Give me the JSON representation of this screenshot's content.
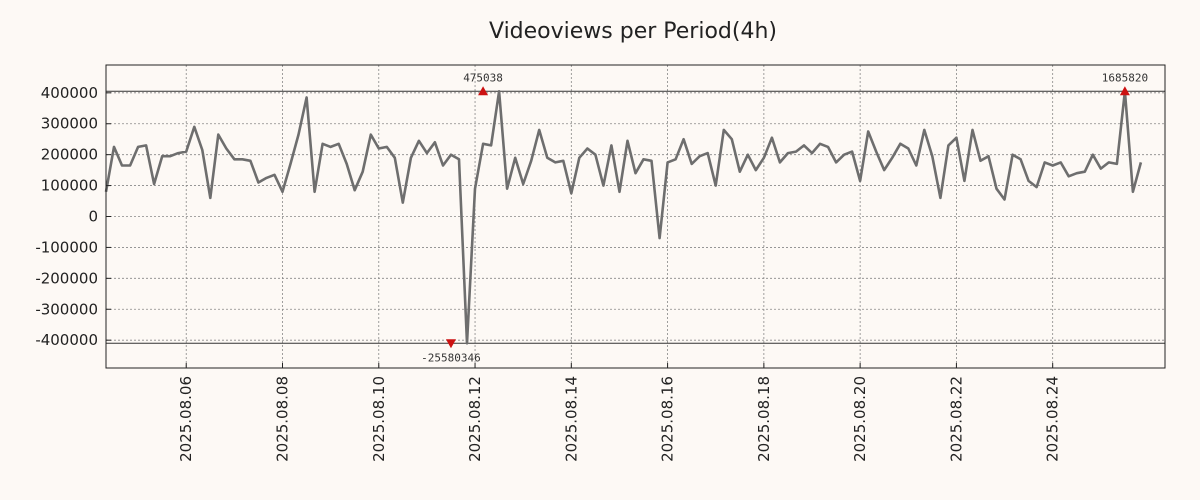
{
  "chart_data": {
    "type": "line",
    "title": "Videoviews per Period(4h)",
    "xlabel": "",
    "ylabel": "",
    "ylim": [
      -490000,
      490000
    ],
    "xlim": [
      "2025.08.04 08:00",
      "2025.08.26 08:00"
    ],
    "grid": true,
    "y_ticks": [
      "400000",
      "300000",
      "200000",
      "100000",
      "0",
      "-100000",
      "-200000",
      "-300000",
      "-400000"
    ],
    "x_ticks": [
      "2025.08.06",
      "2025.08.08",
      "2025.08.10",
      "2025.08.12",
      "2025.08.14",
      "2025.08.16",
      "2025.08.18",
      "2025.08.20",
      "2025.08.22",
      "2025.08.24"
    ],
    "colors": {
      "line": "#6e6e6e",
      "marker": "#cc1111",
      "background": "#fdf9f5"
    },
    "reference_lines": [
      405000,
      -410000
    ],
    "annotations": [
      {
        "label": "475038",
        "x": "2025.08.12 04:00",
        "y": 405000,
        "marker": "triangle-up"
      },
      {
        "label": "-25580346",
        "x": "2025.08.11 12:00",
        "y": -410000,
        "marker": "triangle-down"
      },
      {
        "label": "1685820",
        "x": "2025.08.25 12:00",
        "y": 405000,
        "marker": "triangle-up"
      }
    ],
    "series": [
      {
        "start": "2025.08.04 08:00",
        "step_hours": 4,
        "values": [
          80000,
          225000,
          165000,
          165000,
          225000,
          230000,
          105000,
          195000,
          195000,
          205000,
          210000,
          290000,
          215000,
          60000,
          265000,
          220000,
          185000,
          185000,
          180000,
          110000,
          125000,
          135000,
          80000,
          170000,
          265000,
          385000,
          80000,
          235000,
          225000,
          235000,
          170000,
          85000,
          145000,
          265000,
          220000,
          225000,
          190000,
          45000,
          190000,
          245000,
          205000,
          240000,
          165000,
          200000,
          185000,
          -410000,
          90000,
          235000,
          230000,
          405000,
          90000,
          190000,
          105000,
          180000,
          280000,
          190000,
          175000,
          180000,
          75000,
          190000,
          220000,
          200000,
          100000,
          230000,
          80000,
          245000,
          140000,
          185000,
          180000,
          -70000,
          175000,
          185000,
          250000,
          170000,
          195000,
          205000,
          100000,
          280000,
          250000,
          145000,
          200000,
          150000,
          190000,
          255000,
          175000,
          205000,
          210000,
          230000,
          205000,
          235000,
          225000,
          175000,
          200000,
          210000,
          115000,
          275000,
          210000,
          150000,
          190000,
          235000,
          220000,
          165000,
          280000,
          195000,
          60000,
          230000,
          255000,
          115000,
          280000,
          180000,
          195000,
          90000,
          55000,
          200000,
          185000,
          115000,
          95000,
          175000,
          165000,
          175000,
          130000,
          140000,
          145000,
          200000,
          155000,
          175000,
          170000,
          405000,
          80000,
          175000
        ]
      }
    ]
  }
}
